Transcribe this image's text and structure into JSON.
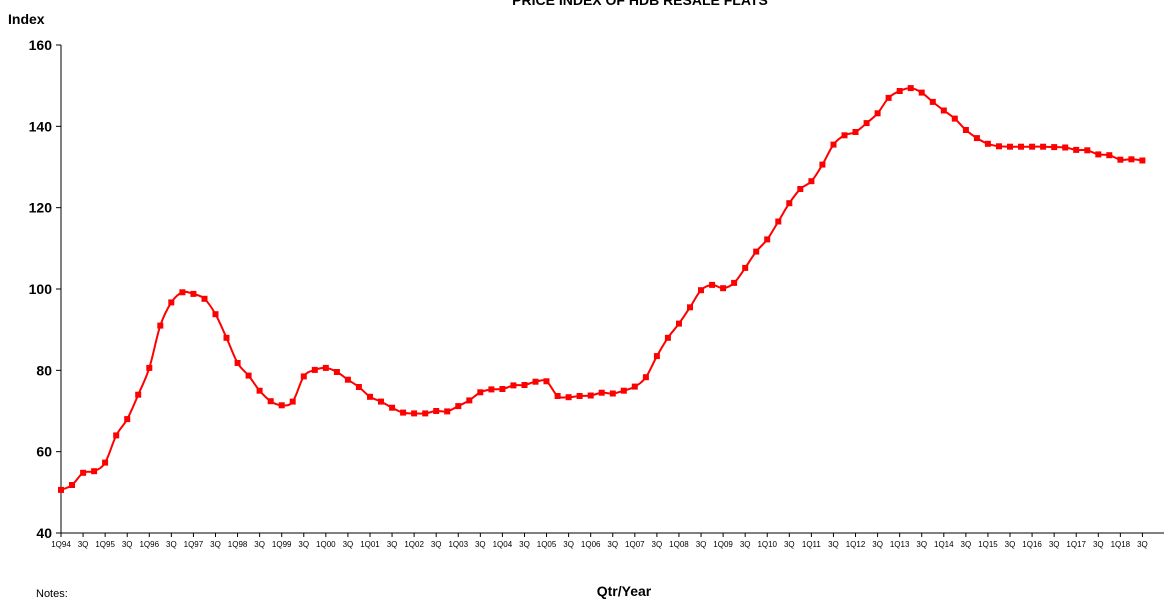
{
  "chart_data": {
    "type": "line",
    "title": "PRICE INDEX OF HDB RESALE FLATS",
    "ylabel": "Index",
    "xlabel": "Qtr/Year",
    "ylim": [
      40,
      160
    ],
    "yticks": [
      40,
      60,
      80,
      100,
      120,
      140,
      160
    ],
    "grid": false,
    "legend": "none",
    "line_color": "#ff0000",
    "x_tick_labels": [
      "1Q94",
      "3Q",
      "1Q95",
      "3Q",
      "1Q96",
      "3Q",
      "1Q97",
      "3Q",
      "1Q98",
      "3Q",
      "1Q99",
      "3Q",
      "1Q00",
      "3Q",
      "1Q01",
      "3Q",
      "1Q02",
      "3Q",
      "1Q03",
      "3Q",
      "1Q04",
      "3Q",
      "1Q05",
      "3Q",
      "1Q06",
      "3Q",
      "1Q07",
      "3Q",
      "1Q08",
      "3Q",
      "1Q09",
      "3Q",
      "1Q10",
      "3Q",
      "1Q11",
      "3Q",
      "1Q12",
      "3Q",
      "1Q13",
      "3Q",
      "1Q14",
      "3Q",
      "1Q15",
      "3Q",
      "1Q16",
      "3Q",
      "1Q17",
      "3Q",
      "1Q18",
      "3Q"
    ],
    "series": [
      {
        "values": [
          50.6,
          51.8,
          54.8,
          55.2,
          57.3,
          64.0,
          68.0,
          74.0,
          80.6,
          91.0,
          96.7,
          99.2,
          98.8,
          97.6,
          93.8,
          88.0,
          81.8,
          78.7,
          75.0,
          72.4,
          71.4,
          72.3,
          78.5,
          80.1,
          80.6,
          79.6,
          77.7,
          75.9,
          73.5,
          72.3,
          70.8,
          69.6,
          69.4,
          69.4,
          70.0,
          69.9,
          71.2,
          72.6,
          74.6,
          75.3,
          75.4,
          76.3,
          76.4,
          77.2,
          77.3,
          73.7,
          73.4,
          73.7,
          73.8,
          74.5,
          74.3,
          75.0,
          76.0,
          78.3,
          83.5,
          88.0,
          91.5,
          95.5,
          99.7,
          101.0,
          100.2,
          101.5,
          105.2,
          109.2,
          112.2,
          116.6,
          121.1,
          124.6,
          126.5,
          130.6,
          135.5,
          137.8,
          138.6,
          140.8,
          143.2,
          147.0,
          148.7,
          149.4,
          148.3,
          146.0,
          143.9,
          141.9,
          139.1,
          137.1,
          135.7,
          135.1,
          135.0,
          135.0,
          135.0,
          135.0,
          134.9,
          134.8,
          134.2,
          134.1,
          133.1,
          132.9,
          131.8,
          131.9,
          131.6
        ]
      }
    ]
  },
  "notes": "Notes:"
}
